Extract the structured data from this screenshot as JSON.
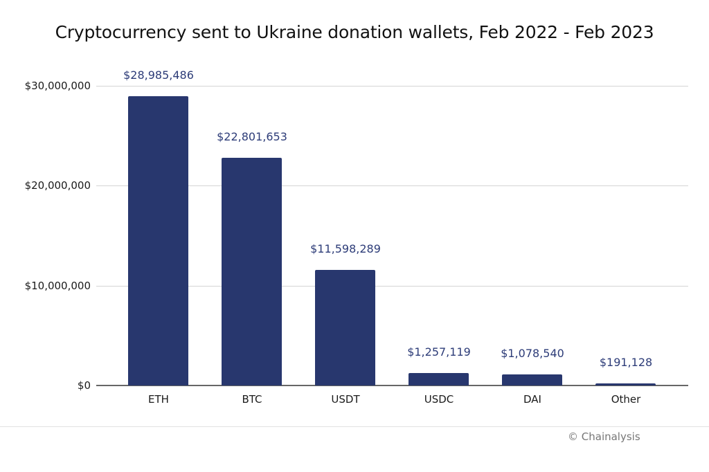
{
  "title": "Cryptocurrency sent to Ukraine donation wallets, Feb 2022 - Feb 2023",
  "credit": "© Chainalysis",
  "colors": {
    "bar": "#28376e",
    "value_label": "#2d3c78",
    "grid": "#d4d4d4",
    "axis": "#666666"
  },
  "yaxis": {
    "ticks": [
      {
        "value": 0,
        "label": "$0"
      },
      {
        "value": 10000000,
        "label": "$10,000,000"
      },
      {
        "value": 20000000,
        "label": "$20,000,000"
      },
      {
        "value": 30000000,
        "label": "$30,000,000"
      }
    ]
  },
  "bars": [
    {
      "category": "ETH",
      "value": 28985486,
      "label": "$28,985,486"
    },
    {
      "category": "BTC",
      "value": 22801653,
      "label": "$22,801,653"
    },
    {
      "category": "USDT",
      "value": 11598289,
      "label": "$11,598,289"
    },
    {
      "category": "USDC",
      "value": 1257119,
      "label": "$1,257,119"
    },
    {
      "category": "DAI",
      "value": 1078540,
      "label": "$1,078,540"
    },
    {
      "category": "Other",
      "value": 191128,
      "label": "$191,128"
    }
  ],
  "chart_data": {
    "type": "bar",
    "title": "Cryptocurrency sent to Ukraine donation wallets, Feb 2022 - Feb 2023",
    "categories": [
      "ETH",
      "BTC",
      "USDT",
      "USDC",
      "DAI",
      "Other"
    ],
    "values": [
      28985486,
      22801653,
      11598289,
      1257119,
      1078540,
      191128
    ],
    "data_labels": [
      "$28,985,486",
      "$22,801,653",
      "$11,598,289",
      "$1,257,119",
      "$1,078,540",
      "$191,128"
    ],
    "xlabel": "",
    "ylabel": "",
    "ylim": [
      0,
      30000000
    ],
    "yticks": [
      "$0",
      "$10,000,000",
      "$20,000,000",
      "$30,000,000"
    ],
    "grid": true,
    "legend": null,
    "source": "© Chainalysis"
  }
}
